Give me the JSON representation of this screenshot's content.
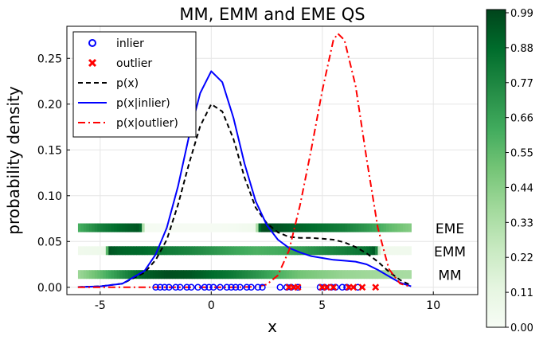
{
  "chart_data": {
    "type": "line",
    "title": "MM, EMM and EME QS",
    "xlabel": "x",
    "ylabel": "probability density",
    "xlim": [
      -6.5,
      12
    ],
    "ylim": [
      -0.008,
      0.285
    ],
    "xticks": [
      "-5",
      "0",
      "5",
      "10"
    ],
    "xtick_values": [
      -5,
      0,
      5,
      10
    ],
    "yticks": [
      "0.00",
      "0.05",
      "0.10",
      "0.15",
      "0.20",
      "0.25"
    ],
    "ytick_values": [
      0,
      0.05,
      0.1,
      0.15,
      0.2,
      0.25
    ],
    "grid": true,
    "legend_position": "top-left",
    "legend": [
      {
        "label": "inlier",
        "style": "circle",
        "color": "#0000ff"
      },
      {
        "label": "outlier",
        "style": "cross",
        "color": "#ff0000"
      },
      {
        "label": "p(x)",
        "style": "dashed",
        "color": "#000000"
      },
      {
        "label": "p(x|inlier)",
        "style": "solid",
        "color": "#0000ff"
      },
      {
        "label": "p(x|outlier)",
        "style": "dashdot",
        "color": "#ff0000"
      }
    ],
    "series": [
      {
        "name": "p(x)",
        "color": "#000000",
        "dash": "dashed",
        "x": [
          -6,
          -5,
          -4,
          -3,
          -2.5,
          -2,
          -1.5,
          -1,
          -0.5,
          0,
          0.5,
          1,
          1.5,
          2,
          2.5,
          3,
          3.5,
          4,
          4.5,
          5,
          5.5,
          6,
          6.5,
          7,
          7.5,
          8,
          8.5,
          9
        ],
        "y": [
          0.0003,
          0.001,
          0.004,
          0.016,
          0.03,
          0.052,
          0.09,
          0.135,
          0.176,
          0.2,
          0.192,
          0.162,
          0.12,
          0.087,
          0.07,
          0.06,
          0.055,
          0.054,
          0.054,
          0.053,
          0.052,
          0.049,
          0.044,
          0.037,
          0.028,
          0.017,
          0.008,
          0.002
        ]
      },
      {
        "name": "p(x|inlier)",
        "color": "#0000ff",
        "dash": "solid",
        "x": [
          -6,
          -5,
          -4,
          -3,
          -2.5,
          -2,
          -1.5,
          -1,
          -0.5,
          0,
          0.5,
          1,
          1.5,
          2,
          2.5,
          3,
          3.5,
          4,
          4.5,
          5,
          5.5,
          6,
          6.5,
          7,
          7.5,
          8,
          8.5,
          9
        ],
        "y": [
          0.0003,
          0.001,
          0.004,
          0.018,
          0.036,
          0.065,
          0.11,
          0.165,
          0.212,
          0.236,
          0.224,
          0.185,
          0.135,
          0.094,
          0.068,
          0.052,
          0.043,
          0.038,
          0.034,
          0.032,
          0.03,
          0.029,
          0.028,
          0.025,
          0.019,
          0.012,
          0.005,
          0.001
        ]
      },
      {
        "name": "p(x|outlier)",
        "color": "#ff0000",
        "dash": "dashdot",
        "x": [
          -6,
          -5,
          -4,
          -3,
          -2,
          -1,
          0,
          1,
          2,
          2.5,
          3,
          3.5,
          4,
          4.5,
          5,
          5.5,
          5.7,
          6,
          6.5,
          7,
          7.5,
          8,
          8.5,
          9
        ],
        "y": [
          0,
          0,
          0,
          0,
          0,
          0,
          0,
          0,
          0.0005,
          0.003,
          0.013,
          0.04,
          0.09,
          0.15,
          0.215,
          0.27,
          0.277,
          0.27,
          0.22,
          0.14,
          0.065,
          0.02,
          0.004,
          0.0005
        ]
      }
    ],
    "scatter": [
      {
        "name": "inlier",
        "marker": "circle",
        "color": "#0000ff",
        "x": [
          -2.5,
          -2.3,
          -2.1,
          -1.9,
          -1.6,
          -1.4,
          -1.1,
          -0.9,
          -0.6,
          -0.3,
          -0.1,
          0.1,
          0.4,
          0.7,
          0.9,
          1.1,
          1.3,
          1.6,
          1.8,
          2.1,
          2.3,
          3.1,
          3.4,
          3.6,
          3.9,
          4.9,
          5.1,
          5.4,
          5.6,
          5.9,
          6.1,
          6.6
        ],
        "y": 0
      },
      {
        "name": "outlier",
        "marker": "cross",
        "color": "#ff0000",
        "x": [
          3.5,
          3.7,
          3.9,
          5.0,
          5.2,
          5.5,
          6.2,
          6.4,
          6.8,
          7.4
        ],
        "y": 0
      }
    ],
    "quantization_bands": [
      {
        "label": "EME",
        "y": 0.065,
        "x_start": -6,
        "x_end": 9,
        "x": [
          -6,
          -5,
          -4,
          -3.2,
          -3.0,
          -2,
          -1,
          0,
          1,
          2,
          2.2,
          2.4,
          3,
          4,
          5,
          6,
          7,
          8,
          9
        ],
        "values": [
          0.6,
          0.8,
          0.9,
          0.95,
          0.02,
          0.01,
          0.01,
          0.01,
          0.02,
          0.05,
          0.95,
          0.98,
          0.95,
          0.9,
          0.85,
          0.8,
          0.7,
          0.55,
          0.45
        ]
      },
      {
        "label": "EMM",
        "y": 0.04,
        "x_start": -6,
        "x_end": 9,
        "x": [
          -6,
          -5,
          -4.8,
          -4.6,
          -4,
          -3,
          -2,
          -1,
          0,
          1,
          2,
          3,
          4,
          5,
          6,
          7,
          7.4,
          7.6,
          8,
          9
        ],
        "values": [
          0.05,
          0.06,
          0.08,
          0.95,
          0.9,
          0.88,
          0.82,
          0.78,
          0.72,
          0.65,
          0.6,
          0.62,
          0.68,
          0.75,
          0.8,
          0.85,
          0.95,
          0.05,
          0.05,
          0.05
        ]
      },
      {
        "label": "MM",
        "y": 0.014,
        "x_start": -6,
        "x_end": 9,
        "x": [
          -6,
          -5,
          -4,
          -3,
          -2,
          -1,
          0,
          1,
          2,
          3,
          4,
          5,
          6,
          7,
          8,
          9
        ],
        "values": [
          0.38,
          0.55,
          0.75,
          0.92,
          0.97,
          0.95,
          0.88,
          0.82,
          0.72,
          0.6,
          0.5,
          0.45,
          0.4,
          0.38,
          0.36,
          0.35
        ]
      }
    ],
    "colorbar": {
      "ticks": [
        "0.00",
        "0.11",
        "0.22",
        "0.33",
        "0.44",
        "0.55",
        "0.66",
        "0.77",
        "0.88",
        "0.99"
      ],
      "tick_values": [
        0,
        0.11,
        0.22,
        0.33,
        0.44,
        0.55,
        0.66,
        0.77,
        0.88,
        0.99
      ],
      "min": 0,
      "max": 1,
      "colors": [
        "#f7fcf5",
        "#e5f5e0",
        "#c7e9c0",
        "#a1d99b",
        "#74c476",
        "#41ab5d",
        "#238b45",
        "#006d2c",
        "#00441b"
      ]
    }
  }
}
